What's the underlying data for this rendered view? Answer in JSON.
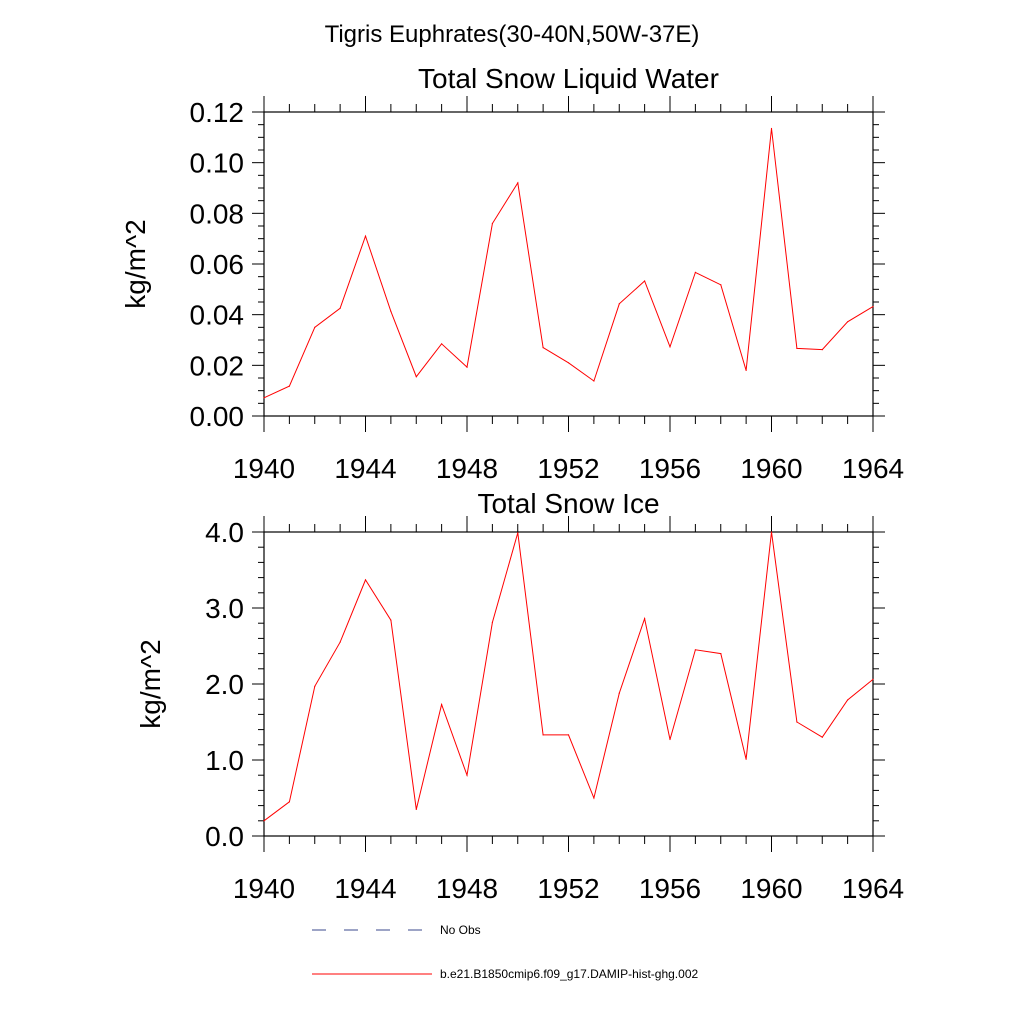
{
  "figure": {
    "suptitle": "Tigris Euphrates(30-40N,50W-37E)"
  },
  "chart_data": [
    {
      "type": "line",
      "title": "Total Snow Liquid Water",
      "xlabel": "",
      "ylabel": "kg/m^2",
      "xlim": [
        1940,
        1964
      ],
      "ylim": [
        0.0,
        0.12
      ],
      "x_ticks": [
        1940,
        1944,
        1948,
        1952,
        1956,
        1960,
        1964
      ],
      "x_tick_labels": [
        "1940",
        "1944",
        "1948",
        "1952",
        "1956",
        "1960",
        "1964"
      ],
      "y_ticks": [
        0.0,
        0.02,
        0.04,
        0.06,
        0.08,
        0.1,
        0.12
      ],
      "y_tick_labels": [
        "0.00",
        "0.02",
        "0.04",
        "0.06",
        "0.08",
        "0.10",
        "0.12"
      ],
      "grid": false,
      "series": [
        {
          "name": "b.e21.B1850cmip6.f09_g17.DAMIP-hist-ghg.002",
          "color": "#ff0000",
          "x": [
            1940,
            1941,
            1942,
            1943,
            1944,
            1945,
            1946,
            1947,
            1948,
            1949,
            1950,
            1951,
            1952,
            1953,
            1954,
            1955,
            1956,
            1957,
            1958,
            1959,
            1960,
            1961,
            1962,
            1963,
            1964
          ],
          "values": [
            0.0072,
            0.0118,
            0.035,
            0.0425,
            0.071,
            0.0413,
            0.0155,
            0.0285,
            0.0193,
            0.076,
            0.092,
            0.027,
            0.021,
            0.0138,
            0.0443,
            0.0533,
            0.0273,
            0.0567,
            0.0518,
            0.018,
            0.1135,
            0.0267,
            0.0262,
            0.0372,
            0.0432
          ]
        }
      ]
    },
    {
      "type": "line",
      "title": "Total Snow Ice",
      "xlabel": "",
      "ylabel": "kg/m^2",
      "xlim": [
        1940,
        1964
      ],
      "ylim": [
        0.0,
        4.0
      ],
      "x_ticks": [
        1940,
        1944,
        1948,
        1952,
        1956,
        1960,
        1964
      ],
      "x_tick_labels": [
        "1940",
        "1944",
        "1948",
        "1952",
        "1956",
        "1960",
        "1964"
      ],
      "y_ticks": [
        0.0,
        1.0,
        2.0,
        3.0,
        4.0
      ],
      "y_tick_labels": [
        "0.0",
        "1.0",
        "2.0",
        "3.0",
        "4.0"
      ],
      "grid": false,
      "series": [
        {
          "name": "b.e21.B1850cmip6.f09_g17.DAMIP-hist-ghg.002",
          "color": "#ff0000",
          "x": [
            1940,
            1941,
            1942,
            1943,
            1944,
            1945,
            1946,
            1947,
            1948,
            1949,
            1950,
            1951,
            1952,
            1953,
            1954,
            1955,
            1956,
            1957,
            1958,
            1959,
            1960,
            1961,
            1962,
            1963,
            1964
          ],
          "values": [
            0.2,
            0.45,
            1.97,
            2.55,
            3.37,
            2.84,
            0.35,
            1.73,
            0.8,
            2.81,
            3.99,
            1.33,
            1.33,
            0.5,
            1.88,
            2.86,
            1.27,
            2.45,
            2.4,
            1.01,
            4.0,
            1.5,
            1.3,
            1.79,
            2.06
          ]
        }
      ]
    }
  ],
  "legend": {
    "placement": "bottom",
    "entries": [
      {
        "label": "No Obs",
        "color": "#3b4a8c",
        "style": "dashed"
      },
      {
        "label": "b.e21.B1850cmip6.f09_g17.DAMIP-hist-ghg.002",
        "color": "#ff0000",
        "style": "solid"
      }
    ]
  }
}
